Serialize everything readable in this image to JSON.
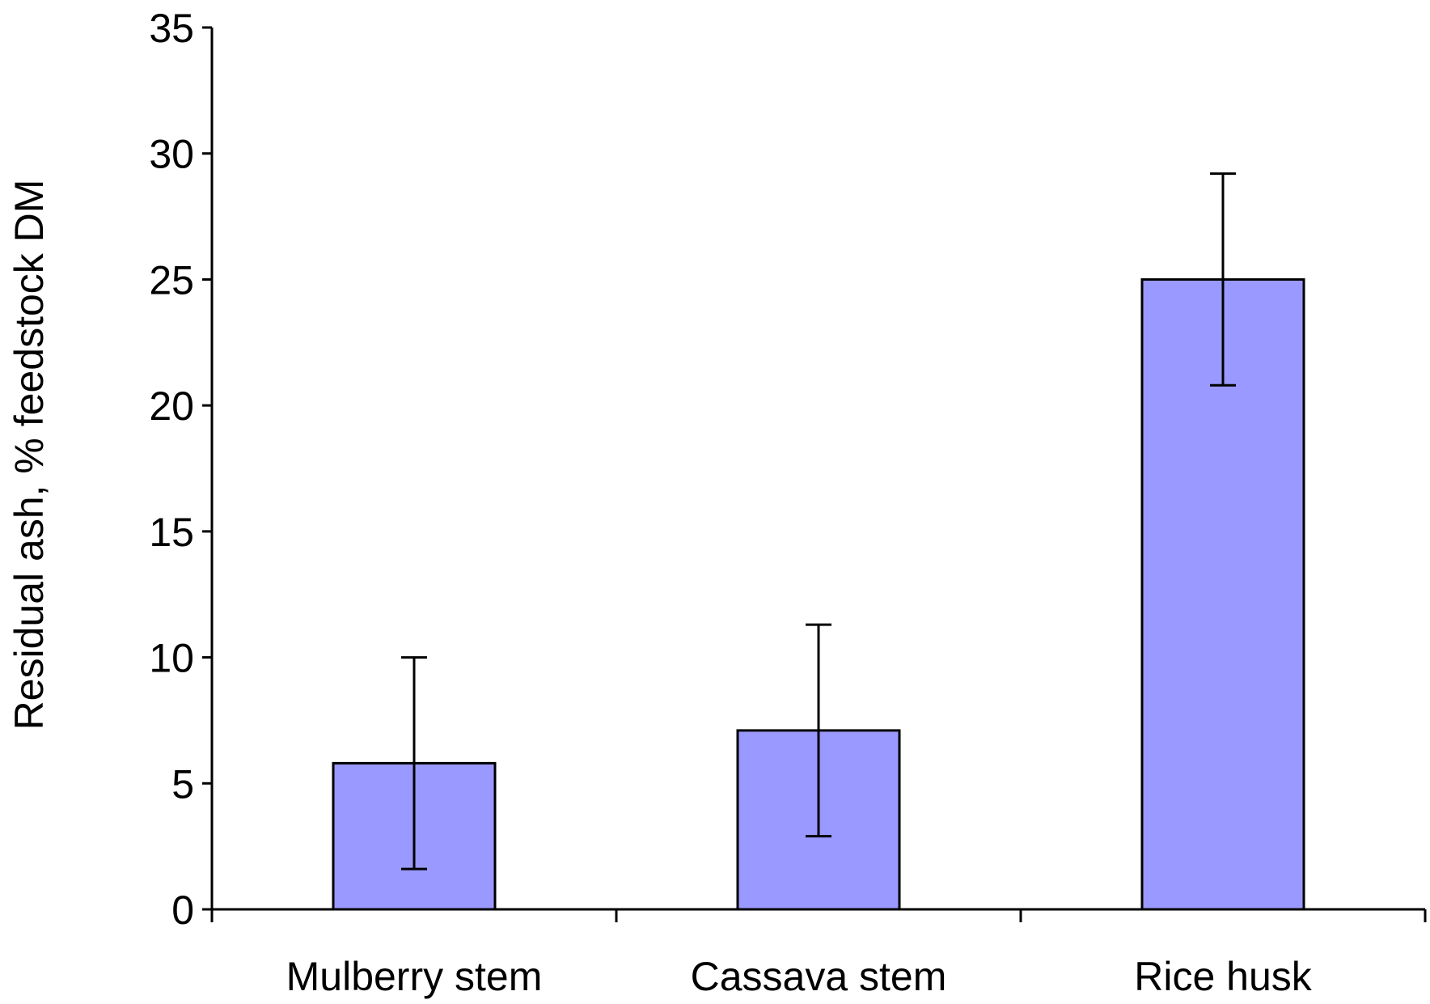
{
  "chart_data": {
    "type": "bar",
    "title": "",
    "xlabel": "",
    "ylabel": "Residual ash, % feedstock DM",
    "categories": [
      "Mulberry stem",
      "Cassava stem",
      "Rice husk"
    ],
    "values": [
      5.8,
      7.1,
      25.0
    ],
    "error": [
      4.2,
      4.2,
      4.2
    ],
    "ylim": [
      0,
      35
    ],
    "yticks": [
      "0",
      "5",
      "10",
      "15",
      "20",
      "25",
      "30",
      "35"
    ],
    "grid": false,
    "legend": "none",
    "bar_color": "#9999ff",
    "edge_color": "#000000"
  }
}
